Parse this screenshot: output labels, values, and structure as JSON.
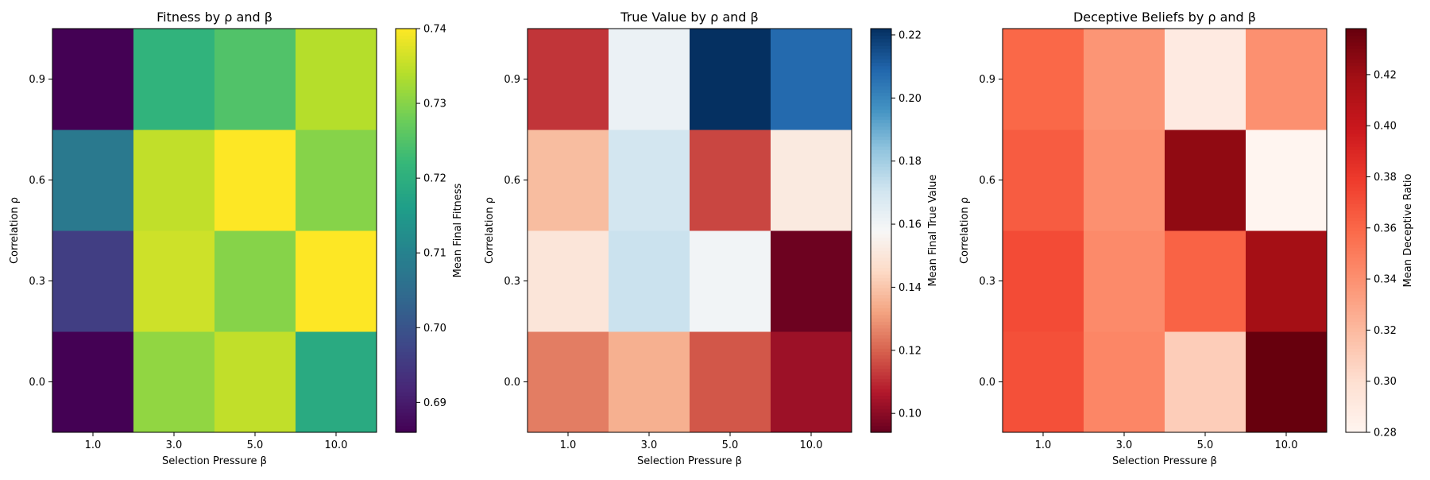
{
  "chart_data": [
    {
      "type": "heatmap",
      "title": "Fitness by ρ and β",
      "xlabel": "Selection Pressure β",
      "ylabel": "Correlation ρ",
      "x_categories": [
        "1.0",
        "3.0",
        "5.0",
        "10.0"
      ],
      "y_categories": [
        "0.0",
        "0.3",
        "0.6",
        "0.9"
      ],
      "values": [
        [
          0.686,
          0.731,
          0.735,
          0.719
        ],
        [
          0.696,
          0.736,
          0.73,
          0.74
        ],
        [
          0.708,
          0.735,
          0.74,
          0.73
        ],
        [
          0.686,
          0.721,
          0.725,
          0.734
        ]
      ],
      "colormap": "viridis",
      "colorbar": {
        "label": "Mean Final Fitness",
        "vmin": 0.686,
        "vmax": 0.74,
        "ticks": [
          "0.69",
          "0.70",
          "0.71",
          "0.72",
          "0.73",
          "0.74"
        ],
        "tick_values": [
          0.69,
          0.7,
          0.71,
          0.72,
          0.73,
          0.74
        ]
      }
    },
    {
      "type": "heatmap",
      "title": "True Value by ρ and β",
      "xlabel": "Selection Pressure β",
      "ylabel": "Correlation ρ",
      "x_categories": [
        "1.0",
        "3.0",
        "5.0",
        "10.0"
      ],
      "y_categories": [
        "0.0",
        "0.3",
        "0.6",
        "0.9"
      ],
      "values": [
        [
          0.125,
          0.135,
          0.118,
          0.103
        ],
        [
          0.15,
          0.172,
          0.16,
          0.095
        ],
        [
          0.138,
          0.17,
          0.115,
          0.152
        ],
        [
          0.112,
          0.162,
          0.222,
          0.208
        ]
      ],
      "colormap": "RdBu",
      "colorbar": {
        "label": "Mean Final True Value",
        "vmin": 0.094,
        "vmax": 0.222,
        "ticks": [
          "0.10",
          "0.12",
          "0.14",
          "0.16",
          "0.18",
          "0.20",
          "0.22"
        ],
        "tick_values": [
          0.1,
          0.12,
          0.14,
          0.16,
          0.18,
          0.2,
          0.22
        ]
      }
    },
    {
      "type": "heatmap",
      "title": "Deceptive Beliefs by ρ and β",
      "xlabel": "Selection Pressure β",
      "ylabel": "Correlation ρ",
      "x_categories": [
        "1.0",
        "3.0",
        "5.0",
        "10.0"
      ],
      "y_categories": [
        "0.0",
        "0.3",
        "0.6",
        "0.9"
      ],
      "values": [
        [
          0.37,
          0.345,
          0.31,
          0.438
        ],
        [
          0.372,
          0.343,
          0.362,
          0.418
        ],
        [
          0.365,
          0.34,
          0.425,
          0.28
        ],
        [
          0.36,
          0.338,
          0.29,
          0.34
        ]
      ],
      "colormap": "Reds",
      "colorbar": {
        "label": "Mean Deceptive Ratio",
        "vmin": 0.28,
        "vmax": 0.438,
        "ticks": [
          "0.28",
          "0.30",
          "0.32",
          "0.34",
          "0.36",
          "0.38",
          "0.40",
          "0.42"
        ],
        "tick_values": [
          0.28,
          0.3,
          0.32,
          0.34,
          0.36,
          0.38,
          0.4,
          0.42
        ]
      }
    }
  ]
}
